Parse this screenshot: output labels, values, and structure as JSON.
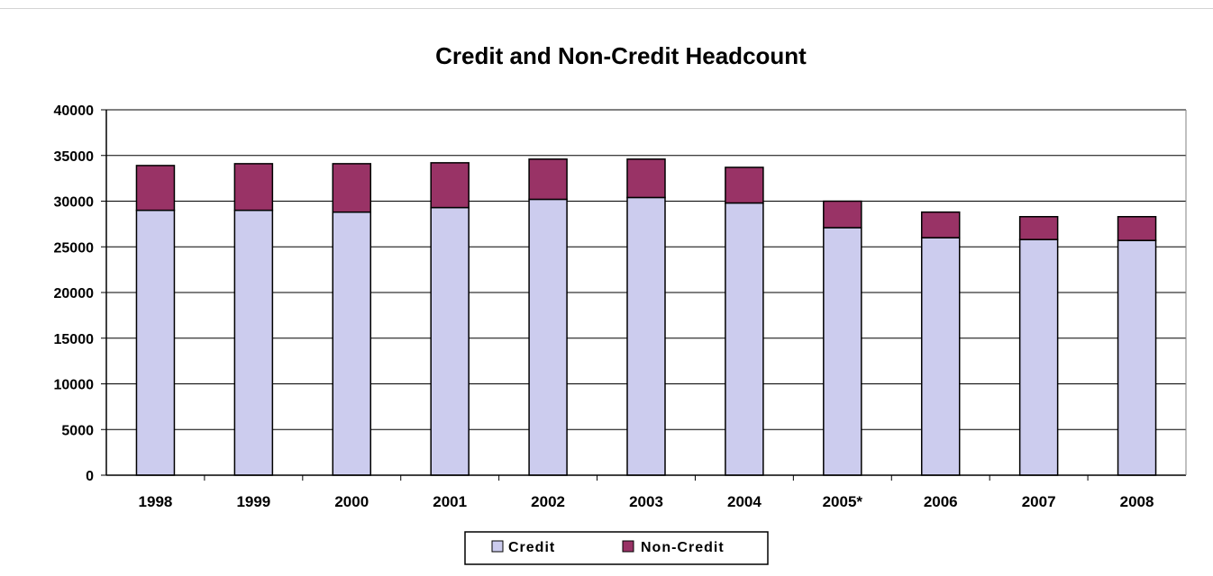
{
  "chart_data": {
    "type": "bar",
    "stacked": true,
    "title": "Credit and Non-Credit Headcount",
    "xlabel": "",
    "ylabel": "",
    "categories": [
      "1998",
      "1999",
      "2000",
      "2001",
      "2002",
      "2003",
      "2004",
      "2005*",
      "2006",
      "2007",
      "2008"
    ],
    "series": [
      {
        "name": "Credit",
        "color": "#ccccee",
        "values": [
          29000,
          29000,
          28800,
          29300,
          30200,
          30400,
          29800,
          27100,
          26000,
          25800,
          25700
        ]
      },
      {
        "name": "Non-Credit",
        "color": "#993366",
        "values": [
          4900,
          5100,
          5300,
          4900,
          4400,
          4200,
          3900,
          2900,
          2800,
          2500,
          2600
        ]
      }
    ],
    "ylim": [
      0,
      40000
    ],
    "yticks": [
      0,
      5000,
      10000,
      15000,
      20000,
      25000,
      30000,
      35000,
      40000
    ],
    "grid": true,
    "legend_position": "bottom"
  }
}
